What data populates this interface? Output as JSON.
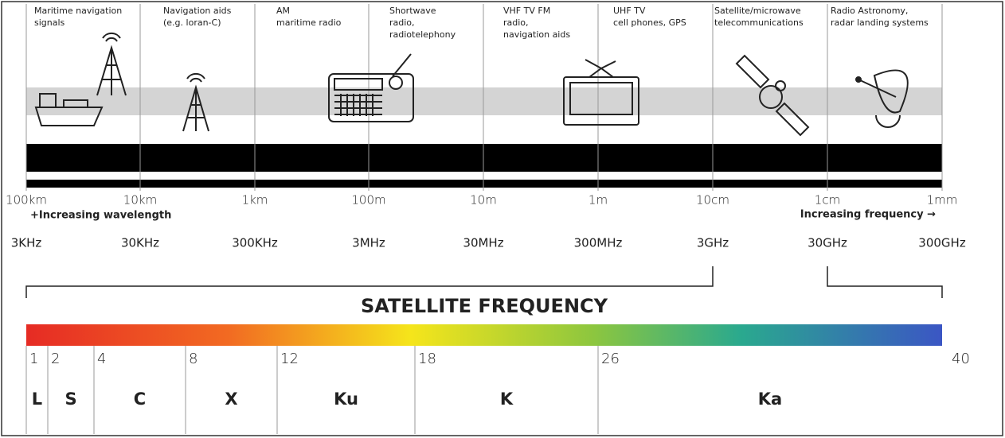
{
  "header": {
    "columns": [
      {
        "lines": [
          "Maritime navigation",
          "signals"
        ]
      },
      {
        "lines": [
          "Navigation aids",
          "(e.g. loran-C)"
        ]
      },
      {
        "lines": [
          "AM",
          "maritime radio"
        ]
      },
      {
        "lines": [
          "Shortwave",
          "radio,",
          "radiotelephony"
        ]
      },
      {
        "lines": [
          "VHF TV FM",
          "radio,",
          "navigation aids"
        ]
      },
      {
        "lines": [
          "UHF TV",
          "cell phones, GPS"
        ]
      },
      {
        "lines": [
          "Satellite/microwave",
          "telecommunications"
        ]
      },
      {
        "lines": [
          "Radio Astronomy,",
          "radar landing systems"
        ]
      }
    ]
  },
  "scale": {
    "wavelengths": [
      "100km",
      "10km",
      "1km",
      "100m",
      "10m",
      "1m",
      "10cm",
      "1cm",
      "1mm"
    ],
    "frequencies": [
      "3KHz",
      "30KHz",
      "300KHz",
      "3MHz",
      "30MHz",
      "300MHz",
      "3GHz",
      "30GHz",
      "300GHz"
    ],
    "wavelength_note": "+Increasing wavelength",
    "frequency_note": "Increasing frequency →"
  },
  "satellite": {
    "title": "SATELLITE FREQUENCY",
    "edges": [
      "1",
      "2",
      "4",
      "8",
      "12",
      "18",
      "26",
      "40"
    ],
    "bands": [
      "L",
      "S",
      "C",
      "X",
      "Ku",
      "K",
      "Ka"
    ]
  }
}
